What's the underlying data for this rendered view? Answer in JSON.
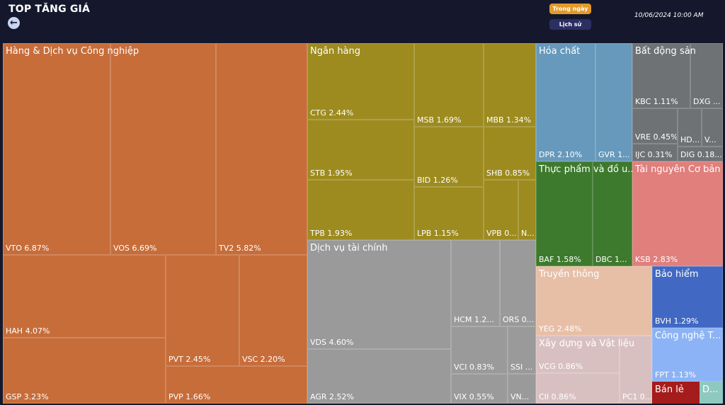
{
  "header": {
    "title": "TOP TĂNG GIÁ",
    "back_icon": "←",
    "today_label": "Trong ngày",
    "history_label": "Lịch sử",
    "timestamp": "10/06/2024 10:00 AM"
  },
  "colors": {
    "industrial": "#c76d3a",
    "bank": "#9d8b1f",
    "finance": "#9a9a9a",
    "chem": "#6699bb",
    "realestate": "#6e7275",
    "food": "#3d7a2d",
    "resources": "#e07f7c",
    "media": "#e7bfa6",
    "insurance": "#4169c3",
    "construction": "#d9c0c0",
    "tech": "#8cb3f5",
    "retail": "#a51c1c",
    "other": "#8ec9c0"
  },
  "sectors": {
    "industrial": {
      "name": "Hàng & Dịch vụ Công nghiệp",
      "cells": [
        {
          "label": "VTO 6.87%"
        },
        {
          "label": "VOS 6.69%"
        },
        {
          "label": "TV2 5.82%"
        },
        {
          "label": "HAH 4.07%"
        },
        {
          "label": "GSP 3.23%"
        },
        {
          "label": "PVT 2.45%"
        },
        {
          "label": "VSC 2.20%"
        },
        {
          "label": "PVP 1.66%"
        }
      ]
    },
    "bank": {
      "name": "Ngân hàng",
      "cells": [
        {
          "label": "CTG 2.44%"
        },
        {
          "label": "STB 1.95%"
        },
        {
          "label": "TPB 1.93%"
        },
        {
          "label": "MSB 1.69%"
        },
        {
          "label": "BID 1.26%"
        },
        {
          "label": "LPB 1.15%"
        },
        {
          "label": "MBB 1.34%"
        },
        {
          "label": "SHB 0.85%"
        },
        {
          "label": "VPB 0..."
        },
        {
          "label": "N..."
        }
      ]
    },
    "finance": {
      "name": "Dịch vụ tài chính",
      "cells": [
        {
          "label": "VDS 4.60%"
        },
        {
          "label": "AGR 2.52%"
        },
        {
          "label": "HCM 1.2..."
        },
        {
          "label": "ORS 0..."
        },
        {
          "label": "VCI 0.83%"
        },
        {
          "label": "SSI ..."
        },
        {
          "label": "VIX 0.55%"
        },
        {
          "label": "VN..."
        }
      ]
    },
    "chem": {
      "name": "Hóa chất",
      "cells": [
        {
          "label": "DPR 2.10%"
        },
        {
          "label": "GVR 1..."
        }
      ]
    },
    "realestate": {
      "name": "Bất động sản",
      "cells": [
        {
          "label": "KBC 1.11%"
        },
        {
          "label": "DXG ..."
        },
        {
          "label": "VRE 0.45%"
        },
        {
          "label": "HD..."
        },
        {
          "label": "V..."
        },
        {
          "label": "IJC 0.31%"
        },
        {
          "label": "DIG 0.18..."
        }
      ]
    },
    "food": {
      "name": "Thực phẩm và đồ u...",
      "cells": [
        {
          "label": "BAF 1.58%"
        },
        {
          "label": "DBC 1..."
        }
      ]
    },
    "resources": {
      "name": "Tài nguyên Cơ bản",
      "cells": [
        {
          "label": "KSB 2.83%"
        }
      ]
    },
    "media": {
      "name": "Truyền thông",
      "cells": [
        {
          "label": "YEG 2.48%"
        }
      ]
    },
    "insurance": {
      "name": "Bảo hiểm",
      "cells": [
        {
          "label": "BVH 1.29%"
        }
      ]
    },
    "construction": {
      "name": "Xây dựng và Vật liệu",
      "cells": [
        {
          "label": "VCG 0.86%"
        },
        {
          "label": "CII 0.86%"
        },
        {
          "label": "PC1 0..."
        }
      ]
    },
    "tech": {
      "name": "Công nghệ T...",
      "cells": [
        {
          "label": "FPT 1.13%"
        }
      ]
    },
    "retail": {
      "name": "Bán lẻ"
    },
    "other": {
      "name": "D..."
    }
  }
}
